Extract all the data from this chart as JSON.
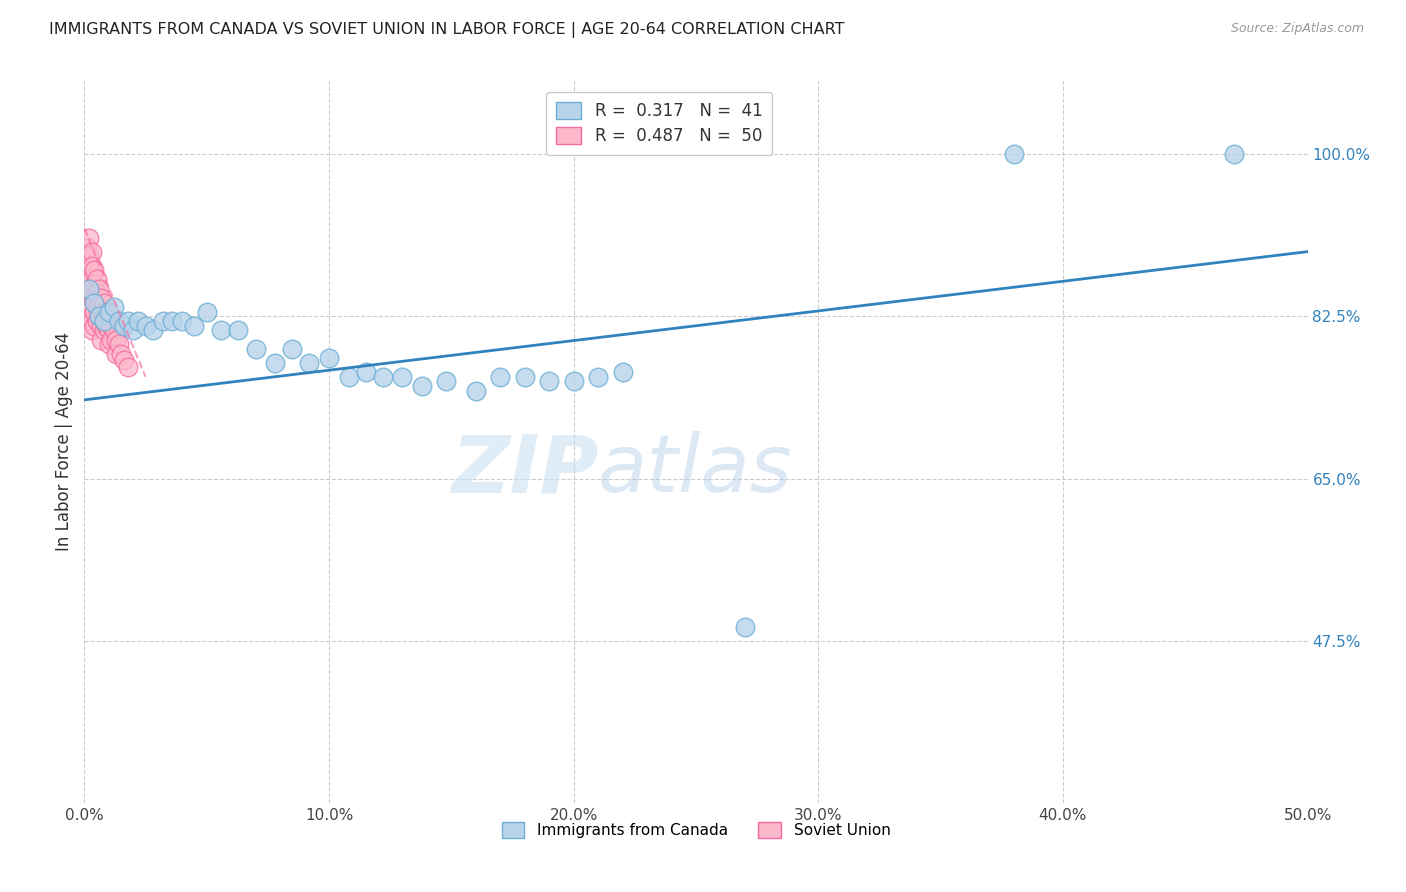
{
  "title": "IMMIGRANTS FROM CANADA VS SOVIET UNION IN LABOR FORCE | AGE 20-64 CORRELATION CHART",
  "source": "Source: ZipAtlas.com",
  "ylabel": "In Labor Force | Age 20-64",
  "xlim": [
    0.0,
    0.5
  ],
  "ylim": [
    0.3,
    1.08
  ],
  "xticks": [
    0.0,
    0.1,
    0.2,
    0.3,
    0.4,
    0.5
  ],
  "xticklabels": [
    "0.0%",
    "10.0%",
    "20.0%",
    "30.0%",
    "40.0%",
    "50.0%"
  ],
  "yticks": [
    0.475,
    0.65,
    0.825,
    1.0
  ],
  "yticklabels": [
    "47.5%",
    "65.0%",
    "82.5%",
    "100.0%"
  ],
  "canada_R": 0.317,
  "canada_N": 41,
  "soviet_R": 0.487,
  "soviet_N": 50,
  "canada_color": "#6baed6",
  "soviet_color": "#f768a1",
  "canada_fill": "#b8d4ea",
  "soviet_fill": "#fcb8cb",
  "trend_blue": "#3182bd",
  "trend_pink": "#f768a1",
  "background_color": "#ffffff",
  "grid_color": "#cccccc",
  "watermark_zip": "ZIP",
  "watermark_atlas": "atlas",
  "canada_x": [
    0.002,
    0.004,
    0.006,
    0.008,
    0.01,
    0.012,
    0.014,
    0.016,
    0.018,
    0.02,
    0.022,
    0.025,
    0.028,
    0.032,
    0.036,
    0.04,
    0.045,
    0.05,
    0.056,
    0.063,
    0.07,
    0.078,
    0.085,
    0.092,
    0.1,
    0.108,
    0.115,
    0.122,
    0.13,
    0.138,
    0.148,
    0.16,
    0.17,
    0.18,
    0.19,
    0.2,
    0.21,
    0.22,
    0.27,
    0.38,
    0.47
  ],
  "canada_y": [
    0.855,
    0.84,
    0.825,
    0.82,
    0.83,
    0.835,
    0.82,
    0.815,
    0.82,
    0.81,
    0.82,
    0.815,
    0.81,
    0.82,
    0.82,
    0.82,
    0.815,
    0.83,
    0.81,
    0.81,
    0.79,
    0.775,
    0.79,
    0.775,
    0.78,
    0.76,
    0.765,
    0.76,
    0.76,
    0.75,
    0.755,
    0.745,
    0.76,
    0.76,
    0.755,
    0.755,
    0.76,
    0.765,
    0.49,
    1.0,
    1.0
  ],
  "soviet_x": [
    0.001,
    0.001,
    0.001,
    0.001,
    0.002,
    0.002,
    0.002,
    0.002,
    0.002,
    0.002,
    0.003,
    0.003,
    0.003,
    0.003,
    0.003,
    0.003,
    0.003,
    0.004,
    0.004,
    0.004,
    0.004,
    0.004,
    0.005,
    0.005,
    0.005,
    0.005,
    0.006,
    0.006,
    0.006,
    0.007,
    0.007,
    0.007,
    0.007,
    0.008,
    0.008,
    0.008,
    0.009,
    0.009,
    0.01,
    0.01,
    0.01,
    0.011,
    0.011,
    0.012,
    0.013,
    0.013,
    0.014,
    0.015,
    0.016,
    0.018
  ],
  "soviet_y": [
    0.9,
    0.88,
    0.86,
    0.84,
    0.91,
    0.89,
    0.875,
    0.86,
    0.845,
    0.83,
    0.895,
    0.88,
    0.865,
    0.85,
    0.835,
    0.82,
    0.81,
    0.875,
    0.86,
    0.845,
    0.83,
    0.815,
    0.865,
    0.85,
    0.835,
    0.82,
    0.855,
    0.84,
    0.825,
    0.845,
    0.83,
    0.815,
    0.8,
    0.84,
    0.825,
    0.81,
    0.83,
    0.815,
    0.825,
    0.81,
    0.795,
    0.815,
    0.8,
    0.81,
    0.8,
    0.785,
    0.795,
    0.785,
    0.778,
    0.77
  ],
  "trend_canada_x0": 0.0,
  "trend_canada_y0": 0.735,
  "trend_canada_x1": 0.5,
  "trend_canada_y1": 0.895,
  "trend_soviet_x0": 0.0,
  "trend_soviet_y0": 0.92,
  "trend_soviet_x1": 0.025,
  "trend_soviet_y1": 0.76
}
